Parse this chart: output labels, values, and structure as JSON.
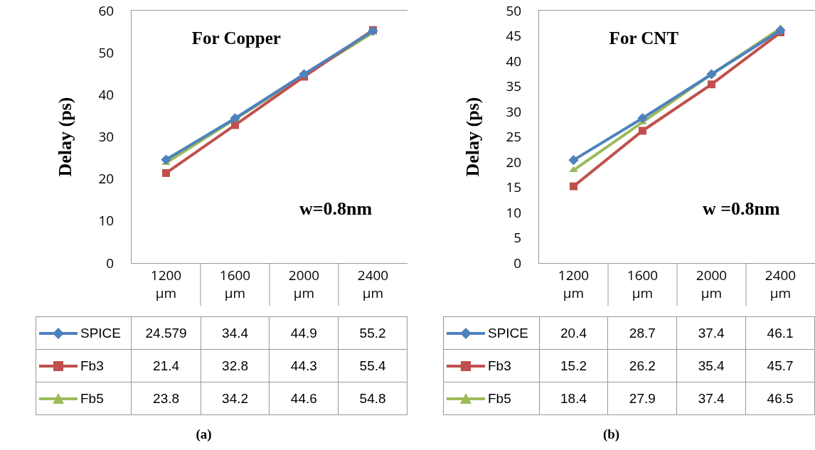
{
  "chart_data": [
    {
      "type": "line",
      "title": "For Copper",
      "ylabel": "Delay (ps)",
      "annotations": [
        "w=0.8nm",
        "(a)"
      ],
      "categories": [
        "1200 µm",
        "1600 µm",
        "2000 µm",
        "2400 µm"
      ],
      "ylim": [
        0,
        60
      ],
      "yticks": [
        0,
        10,
        20,
        30,
        40,
        50,
        60
      ],
      "grid": false,
      "legend": "bottom left",
      "data_labels": true,
      "series": [
        {
          "name": "SPICE",
          "color": "#4f81bd",
          "marker": "diamond",
          "values": [
            24.579,
            34.4,
            44.9,
            55.2
          ]
        },
        {
          "name": "Fb3",
          "color": "#c0504d",
          "marker": "square",
          "values": [
            21.4,
            32.8,
            44.3,
            55.4
          ]
        },
        {
          "name": "Fb5",
          "color": "#9bbb59",
          "marker": "triangle",
          "values": [
            23.8,
            34.2,
            44.6,
            54.8
          ]
        }
      ]
    },
    {
      "type": "line",
      "title": "For CNT",
      "ylabel": "Delay (ps)",
      "annotations": [
        "w =0.8nm",
        "(b)"
      ],
      "categories": [
        "1200 µm",
        "1600 µm",
        "2000 µm",
        "2400 µm"
      ],
      "ylim": [
        0,
        50
      ],
      "yticks": [
        0,
        5,
        10,
        15,
        20,
        25,
        30,
        35,
        40,
        45,
        50
      ],
      "grid": false,
      "legend": "bottom left",
      "data_labels": true,
      "series": [
        {
          "name": "SPICE",
          "color": "#4f81bd",
          "marker": "diamond",
          "values": [
            20.4,
            28.7,
            37.4,
            46.1
          ]
        },
        {
          "name": "Fb3",
          "color": "#c0504d",
          "marker": "square",
          "values": [
            15.2,
            26.2,
            35.4,
            45.7
          ]
        },
        {
          "name": "Fb5",
          "color": "#9bbb59",
          "marker": "triangle",
          "values": [
            18.4,
            27.9,
            37.4,
            46.5
          ]
        }
      ]
    }
  ]
}
